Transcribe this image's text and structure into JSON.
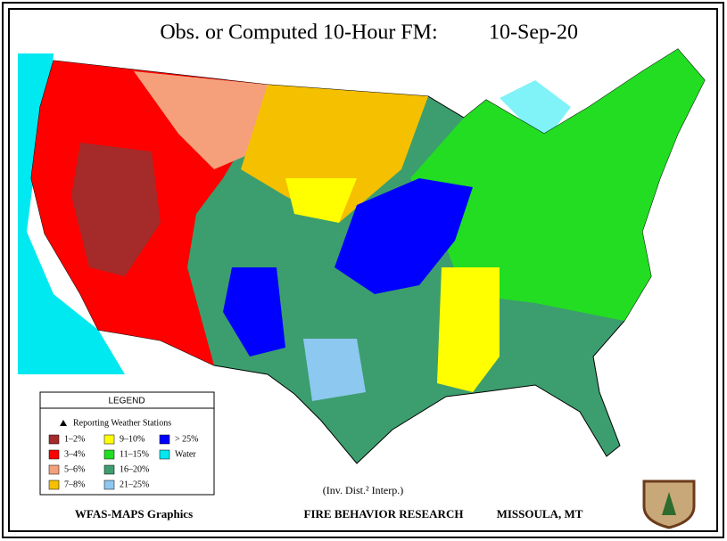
{
  "title": "Obs. or Computed 10-Hour FM:",
  "date": "10-Sep-20",
  "legend": {
    "title": "LEGEND",
    "stations": "Reporting Weather Stations",
    "items": [
      {
        "label": "1–2%",
        "color": "#a52a2a"
      },
      {
        "label": "3–4%",
        "color": "#ff0000"
      },
      {
        "label": "5–6%",
        "color": "#f5a07a"
      },
      {
        "label": "7–8%",
        "color": "#f5c000"
      },
      {
        "label": "9–10%",
        "color": "#ffff00"
      },
      {
        "label": "11–15%",
        "color": "#22dd22"
      },
      {
        "label": "16–20%",
        "color": "#3c9e6e"
      },
      {
        "label": "21–25%",
        "color": "#8cc8f0"
      },
      {
        "label": "> 25%",
        "color": "#0000ff"
      },
      {
        "label": "Water",
        "color": "#00e8f0"
      }
    ]
  },
  "interp_note": "(Inv. Dist.² Interp.)",
  "footer": [
    "WFAS-MAPS Graphics",
    "FIRE BEHAVIOR RESEARCH",
    "MISSOULA, MT"
  ]
}
